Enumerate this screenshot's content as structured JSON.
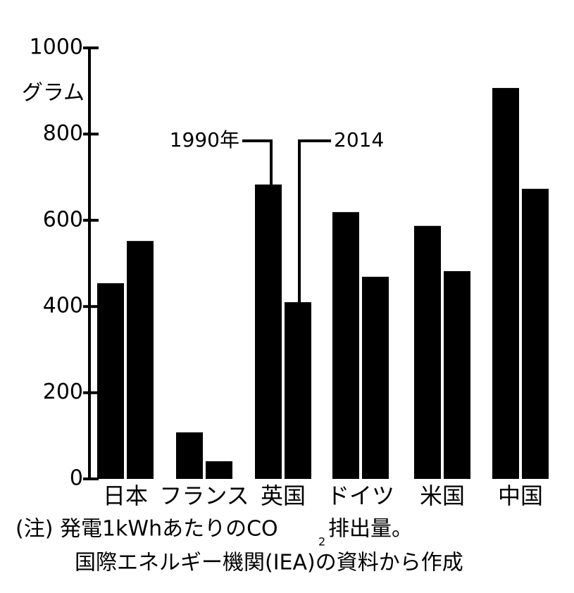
{
  "chart_data": {
    "type": "bar",
    "y_label": "グラム",
    "categories": [
      "日本",
      "フランス",
      "英国",
      "ドイツ",
      "米国",
      "中国"
    ],
    "series": [
      {
        "name": "1990年",
        "color": "#000000",
        "values": [
          454,
          108,
          683,
          619,
          587,
          907
        ]
      },
      {
        "name": "2014",
        "color": "#000000",
        "values": [
          552,
          41,
          410,
          469,
          482,
          673
        ]
      }
    ],
    "ylim": [
      0,
      1000
    ],
    "yticks": [
      0,
      200,
      400,
      600,
      800,
      1000
    ],
    "note": [
      "(注) 発電1kWhあたりのCO",
      "2",
      "排出量。",
      "国際エネルギー機関(IEA)の資料から作成"
    ]
  }
}
